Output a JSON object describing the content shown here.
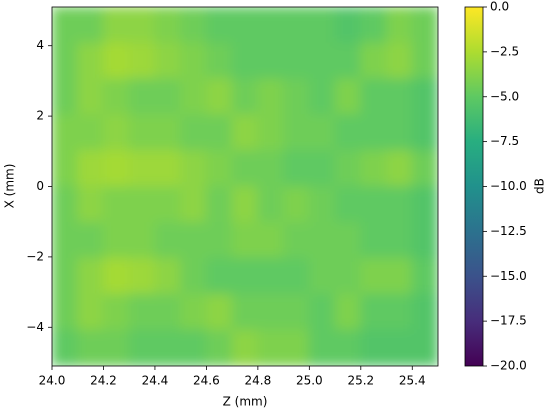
{
  "chart_data": {
    "type": "heatmap",
    "colormap": "viridis",
    "x_label": "Z (mm)",
    "y_label": "X (mm)",
    "colorbar_label": "dB",
    "xlim": [
      24.0,
      25.5
    ],
    "ylim": [
      -5.1,
      5.1
    ],
    "clim": [
      -20,
      0
    ],
    "xticks": [
      {
        "value": 24.0,
        "label": "24.0"
      },
      24.2,
      24.4,
      24.6,
      24.8,
      {
        "value": 25.0,
        "label": "25.0"
      },
      25.2,
      25.4
    ],
    "yticks": [
      {
        "value": -4,
        "label": "−4"
      },
      {
        "value": -2,
        "label": "−2"
      },
      0,
      2,
      4
    ],
    "cticks": [
      {
        "value": 0,
        "label": "0.0"
      },
      {
        "value": -2.5,
        "label": "−2.5"
      },
      {
        "value": -5,
        "label": "−5.0"
      },
      {
        "value": -7.5,
        "label": "−7.5"
      },
      {
        "value": -10,
        "label": "−10.0"
      },
      {
        "value": -12.5,
        "label": "−12.5"
      },
      {
        "value": -15,
        "label": "−15.0"
      },
      {
        "value": -17.5,
        "label": "−17.5"
      },
      {
        "value": -20,
        "label": "−20.0"
      }
    ],
    "z": [
      [
        -4.5,
        -4.5,
        -3.5,
        -3.5,
        -4.0,
        -4.5,
        -5,
        -5,
        -5,
        -5,
        -5,
        -5.5,
        -5.0,
        -4.0,
        -4.5
      ],
      [
        -4.5,
        -3.5,
        -2.8,
        -3.0,
        -3.5,
        -4.0,
        -4.5,
        -5,
        -5,
        -5,
        -5,
        -5,
        -4.0,
        -3.5,
        -4.5
      ],
      [
        -4.5,
        -3.5,
        -4.0,
        -4.5,
        -4.5,
        -4.0,
        -3.5,
        -4.5,
        -4.0,
        -4.5,
        -5,
        -4.0,
        -5,
        -5,
        -5.5
      ],
      [
        -4.0,
        -4.0,
        -3.5,
        -4.0,
        -4.0,
        -4.5,
        -4.5,
        -3.5,
        -4.0,
        -4.5,
        -4.5,
        -5,
        -5,
        -5,
        -5.5
      ],
      [
        -4.0,
        -3.0,
        -2.8,
        -3.0,
        -3.0,
        -3.5,
        -4.0,
        -4.5,
        -4.5,
        -5,
        -5,
        -4.5,
        -4.0,
        -3.5,
        -4.5
      ],
      [
        -4.5,
        -3.5,
        -4.0,
        -4.0,
        -4.0,
        -3.5,
        -4.5,
        -3.5,
        -4.5,
        -4.0,
        -4.5,
        -5,
        -5,
        -5,
        -5.5
      ],
      [
        -4.5,
        -4.5,
        -4.0,
        -4.0,
        -4.5,
        -4.5,
        -4.5,
        -4.0,
        -4.0,
        -4.5,
        -4.5,
        -4.5,
        -5,
        -5,
        -5.5
      ],
      [
        -4.5,
        -3.5,
        -2.8,
        -3.0,
        -3.5,
        -4.5,
        -5,
        -5,
        -5,
        -5,
        -4.5,
        -4.5,
        -4.0,
        -4.0,
        -5.0
      ],
      [
        -4.5,
        -3.5,
        -4.0,
        -4.5,
        -4.5,
        -4.0,
        -3.5,
        -4.5,
        -4.5,
        -4.5,
        -5,
        -4.0,
        -5,
        -5,
        -5.5
      ],
      [
        -5.0,
        -4.5,
        -4.5,
        -5.0,
        -5,
        -5,
        -4.5,
        -3.5,
        -4.0,
        -4.0,
        -5,
        -5,
        -5.5,
        -5.5,
        -5.5
      ]
    ]
  }
}
